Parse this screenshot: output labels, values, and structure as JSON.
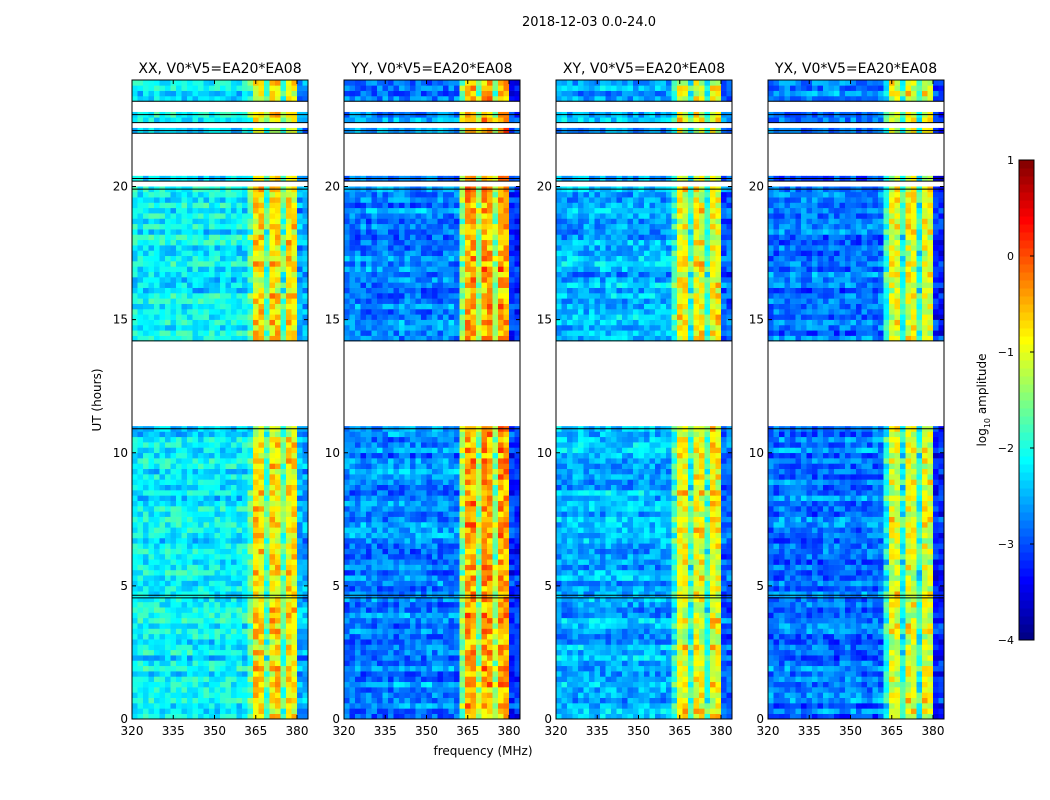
{
  "chart_data": {
    "type": "heatmap",
    "suptitle": "2018-12-03 0.0-24.0",
    "xlabel": "frequency (MHz)",
    "ylabel": "UT (hours)",
    "xlim": [
      320,
      384
    ],
    "ylim": [
      0,
      24
    ],
    "xticks": [
      "320",
      "335",
      "350",
      "365",
      "380"
    ],
    "xtick_values": [
      320,
      335,
      350,
      365,
      380
    ],
    "yticks": [
      "0",
      "5",
      "10",
      "15",
      "20"
    ],
    "ytick_values": [
      0,
      5,
      10,
      15,
      20
    ],
    "colorbar": {
      "label_prefix": "log",
      "label_sub": "10",
      "label_suffix": " amplitude",
      "clim": [
        -4,
        1
      ],
      "ticks": [
        "1",
        "0",
        "−1",
        "−2",
        "−3",
        "−4"
      ],
      "tick_values": [
        1,
        0,
        -1,
        -2,
        -3,
        -4
      ],
      "colormap": "jet"
    },
    "valid_time_ranges_hours": [
      [
        0,
        4.55
      ],
      [
        4.65,
        10.9
      ],
      [
        14.2,
        19.9
      ],
      [
        20.2,
        20.3
      ],
      [
        22.0,
        22.1
      ],
      [
        22.4,
        22.7
      ],
      [
        23.2,
        24
      ]
    ],
    "rfi_band_mhz": [
      362,
      380
    ],
    "panels": [
      {
        "title": "XX, V0*V5=EA20*EA08",
        "background_log_amp": -2.2,
        "rfi_log_amp": -0.8
      },
      {
        "title": "YY, V0*V5=EA20*EA08",
        "background_log_amp": -2.7,
        "rfi_log_amp": -0.4
      },
      {
        "title": "XY, V0*V5=EA20*EA08",
        "background_log_amp": -2.5,
        "rfi_log_amp": -0.9
      },
      {
        "title": "YX, V0*V5=EA20*EA08",
        "background_log_amp": -2.8,
        "rfi_log_amp": -1.0
      }
    ]
  }
}
